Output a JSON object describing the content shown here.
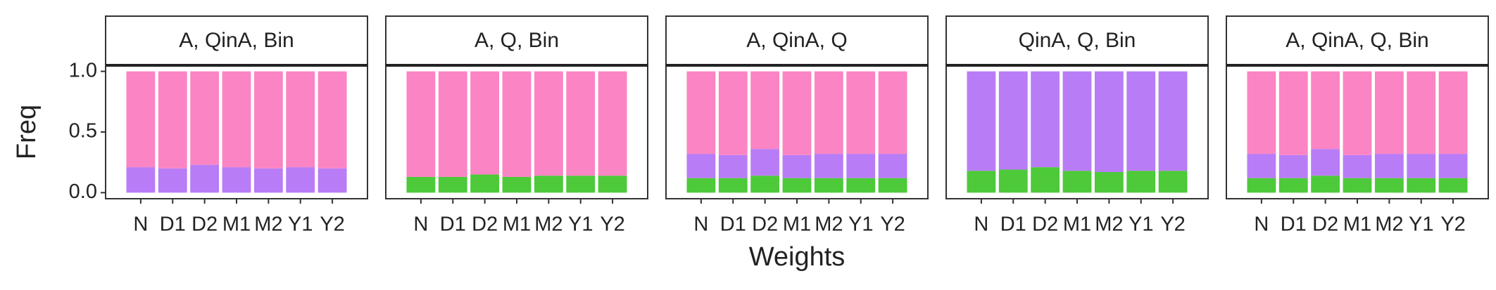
{
  "chart_data": [
    {
      "type": "stacked_bar",
      "title": "A, QinA, Bin",
      "ylabel": "Freq",
      "categories": [
        "N",
        "D1",
        "D2",
        "M1",
        "M2",
        "Y1",
        "Y2"
      ],
      "series": [
        {
          "color": "#b97cf7",
          "values": [
            0.21,
            0.2,
            0.23,
            0.21,
            0.2,
            0.21,
            0.2
          ]
        },
        {
          "color": "#fb84c4",
          "values": [
            0.79,
            0.8,
            0.77,
            0.79,
            0.8,
            0.79,
            0.8
          ]
        }
      ],
      "ylim": [
        -0.05,
        1.05
      ],
      "yticks": [
        {
          "value": 0,
          "label": "0.0"
        },
        0.5,
        {
          "value": 1,
          "label": "1.0"
        }
      ]
    },
    {
      "type": "stacked_bar",
      "title": "A, Q, Bin",
      "categories": [
        "N",
        "D1",
        "D2",
        "M1",
        "M2",
        "Y1",
        "Y2"
      ],
      "series": [
        {
          "color": "#4dc93a",
          "values": [
            0.13,
            0.13,
            0.15,
            0.13,
            0.14,
            0.14,
            0.14
          ]
        },
        {
          "color": "#fb84c4",
          "values": [
            0.87,
            0.87,
            0.85,
            0.87,
            0.86,
            0.86,
            0.86
          ]
        }
      ],
      "ylim": [
        -0.05,
        1.05
      ]
    },
    {
      "type": "stacked_bar",
      "title": "A, QinA, Q",
      "xlabel": "Weights",
      "categories": [
        "N",
        "D1",
        "D2",
        "M1",
        "M2",
        "Y1",
        "Y2"
      ],
      "series": [
        {
          "color": "#4dc93a",
          "values": [
            0.12,
            0.12,
            0.14,
            0.12,
            0.12,
            0.12,
            0.12
          ]
        },
        {
          "color": "#b97cf7",
          "values": [
            0.2,
            0.19,
            0.22,
            0.19,
            0.2,
            0.2,
            0.2
          ]
        },
        {
          "color": "#fb84c4",
          "values": [
            0.68,
            0.69,
            0.64,
            0.69,
            0.68,
            0.68,
            0.68
          ]
        }
      ],
      "ylim": [
        -0.05,
        1.05
      ]
    },
    {
      "type": "stacked_bar",
      "title": "QinA, Q, Bin",
      "categories": [
        "N",
        "D1",
        "D2",
        "M1",
        "M2",
        "Y1",
        "Y2"
      ],
      "series": [
        {
          "color": "#4dc93a",
          "values": [
            0.18,
            0.19,
            0.21,
            0.18,
            0.17,
            0.18,
            0.18
          ]
        },
        {
          "color": "#b97cf7",
          "values": [
            0.82,
            0.81,
            0.79,
            0.82,
            0.83,
            0.82,
            0.82
          ]
        }
      ],
      "ylim": [
        -0.05,
        1.05
      ]
    },
    {
      "type": "stacked_bar",
      "title": "A, QinA, Q, Bin",
      "categories": [
        "N",
        "D1",
        "D2",
        "M1",
        "M2",
        "Y1",
        "Y2"
      ],
      "series": [
        {
          "color": "#4dc93a",
          "values": [
            0.12,
            0.12,
            0.14,
            0.12,
            0.12,
            0.12,
            0.12
          ]
        },
        {
          "color": "#b97cf7",
          "values": [
            0.2,
            0.19,
            0.22,
            0.19,
            0.2,
            0.2,
            0.2
          ]
        },
        {
          "color": "#fb84c4",
          "values": [
            0.68,
            0.69,
            0.64,
            0.69,
            0.68,
            0.68,
            0.68
          ]
        }
      ],
      "ylim": [
        -0.05,
        1.05
      ]
    }
  ]
}
